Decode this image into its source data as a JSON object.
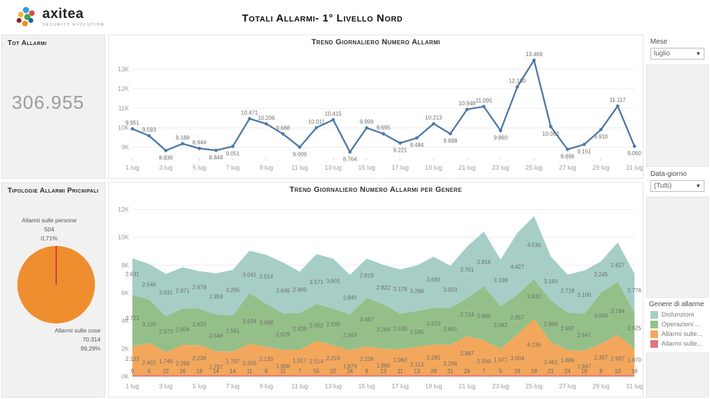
{
  "header": {
    "logo_text": "axitea",
    "logo_subtext": "SECURITY EVOLUTION",
    "title": "Totali Allarmi- 1° Livello Nord"
  },
  "tot_panel": {
    "title": "Tot Allarmi",
    "value": "306.955"
  },
  "tip_panel": {
    "title": "Tipologie Allarmi Pricnipali",
    "persone": {
      "label": "Allarmi sulle persone",
      "value": "504",
      "pct": "0,71%"
    },
    "cose": {
      "label": "Allarmi sulle cose",
      "value": "70.314",
      "pct": "99,29%"
    }
  },
  "filters": {
    "mese": {
      "label": "Mese",
      "value": "luglio"
    },
    "data_giorno": {
      "label": "Data-giorno",
      "value": "(Tutti)"
    }
  },
  "legend": {
    "title": "Genere di allarme",
    "items": [
      {
        "label": "Disfunzioni",
        "color": "#a6cec7"
      },
      {
        "label": "Operazioni ...",
        "color": "#94bf89"
      },
      {
        "label": "Allarmi sulle...",
        "color": "#f3a75c"
      },
      {
        "label": "Allarmi sulle...",
        "color": "#e0757e"
      }
    ]
  },
  "chart_data": [
    {
      "type": "line",
      "title": "Trend Giornaliero Numero Allarmi",
      "color": "#4e79a7",
      "categories": [
        "1 lug",
        "2 lug",
        "3 lug",
        "4 lug",
        "5 lug",
        "6 lug",
        "7 lug",
        "8 lug",
        "9 lug",
        "10 lug",
        "11 lug",
        "12 lug",
        "13 lug",
        "14 lug",
        "15 lug",
        "16 lug",
        "17 lug",
        "18 lug",
        "19 lug",
        "20 lug",
        "21 lug",
        "22 lug",
        "23 lug",
        "24 lug",
        "25 lug",
        "26 lug",
        "27 lug",
        "28 lug",
        "29 lug",
        "30 lug",
        "31 lug"
      ],
      "values": [
        9951,
        9593,
        8838,
        9188,
        8944,
        8848,
        9051,
        10471,
        10206,
        9688,
        9009,
        10011,
        10415,
        8764,
        9999,
        9695,
        9221,
        9484,
        10213,
        9698,
        10948,
        11095,
        9860,
        12100,
        13469,
        10062,
        8896,
        9151,
        9910,
        11117,
        9060
      ],
      "label_pos": [
        "a",
        "a",
        "b",
        "a",
        "a",
        "b",
        "b",
        "a",
        "a",
        "a",
        "b",
        "a",
        "a",
        "b",
        "a",
        "a",
        "b",
        "b",
        "a",
        "b",
        "a",
        "a",
        "b",
        "a",
        "a",
        "b",
        "b",
        "b",
        "b",
        "a",
        "b"
      ],
      "ylim": [
        8500,
        13600
      ],
      "yticks": [
        9000,
        10000,
        11000,
        12000,
        13000
      ],
      "grid": true
    },
    {
      "type": "area",
      "title": "Trend Giornaliero Numero Allarmi per Genere",
      "categories": [
        "1 lug",
        "2 lug",
        "3 lug",
        "4 lug",
        "5 lug",
        "6 lug",
        "7 lug",
        "8 lug",
        "9 lug",
        "10 lug",
        "11 lug",
        "12 lug",
        "13 lug",
        "14 lug",
        "15 lug",
        "16 lug",
        "17 lug",
        "18 lug",
        "19 lug",
        "20 lug",
        "21 lug",
        "22 lug",
        "23 lug",
        "24 lug",
        "25 lug",
        "26 lug",
        "27 lug",
        "28 lug",
        "29 lug",
        "30 lug",
        "31 lug"
      ],
      "stack_order_bottom_to_top": [
        "Allarmi sulle persone",
        "Allarmi sulle cose",
        "Operazioni ...",
        "Disfunzioni"
      ],
      "series": [
        {
          "name": "Allarmi sulle persone",
          "color": "#e0757e",
          "values": [
            9,
            6,
            22,
            16,
            18,
            14,
            14,
            11,
            6,
            11,
            7,
            55,
            22,
            24,
            8,
            13,
            11,
            13,
            28,
            21,
            24,
            7,
            5,
            19,
            18,
            21,
            24,
            18,
            8,
            13,
            18
          ]
        },
        {
          "name": "Allarmi sulle cose",
          "color": "#f3a75c",
          "values": [
            2133,
            2402,
            1746,
            2258,
            2238,
            1797,
            1797,
            2355,
            2133,
            1908,
            1917,
            2514,
            2219,
            1879,
            2158,
            1980,
            1963,
            2113,
            2281,
            2266,
            2887,
            2599,
            1977,
            3004,
            4136,
            2461,
            1889,
            1847,
            2357,
            2997,
            1970
          ]
        },
        {
          "name": "Operazioni ...",
          "color": "#94bf89",
          "values": [
            3721,
            3130,
            2573,
            2604,
            2633,
            2648,
            2561,
            3634,
            3088,
            2629,
            2639,
            2652,
            2630,
            2563,
            3487,
            3204,
            2539,
            2585,
            2623,
            2661,
            2724,
            3885,
            3082,
            2857,
            2832,
            2989,
            2697,
            2647,
            3663,
            3794,
            2625
          ]
        },
        {
          "name": "Disfunzioni",
          "color": "#a6cec7",
          "values": [
            2631,
            2546,
            3031,
            2971,
            2679,
            2959,
            3295,
            3041,
            3514,
            3649,
            2969,
            3571,
            3601,
            2840,
            2819,
            2822,
            3178,
            3266,
            3681,
            3003,
            3701,
            3916,
            3338,
            4427,
            4536,
            3160,
            2718,
            3106,
            2245,
            2827,
            2776
          ]
        }
      ],
      "ylim": [
        0,
        12400
      ],
      "yticks": [
        0,
        2000,
        4000,
        6000,
        8000,
        10000,
        12000
      ],
      "grid": true,
      "legend_position": "right"
    },
    {
      "type": "pie",
      "title": "Tipologie Allarmi Pricnipali",
      "slices": [
        {
          "label": "Allarmi sulle cose",
          "value": 70314,
          "pct": 99.29,
          "color": "#ef8e2e"
        },
        {
          "label": "Allarmi sulle persone",
          "value": 504,
          "pct": 0.71,
          "color": "#cf3a4e"
        }
      ]
    }
  ]
}
